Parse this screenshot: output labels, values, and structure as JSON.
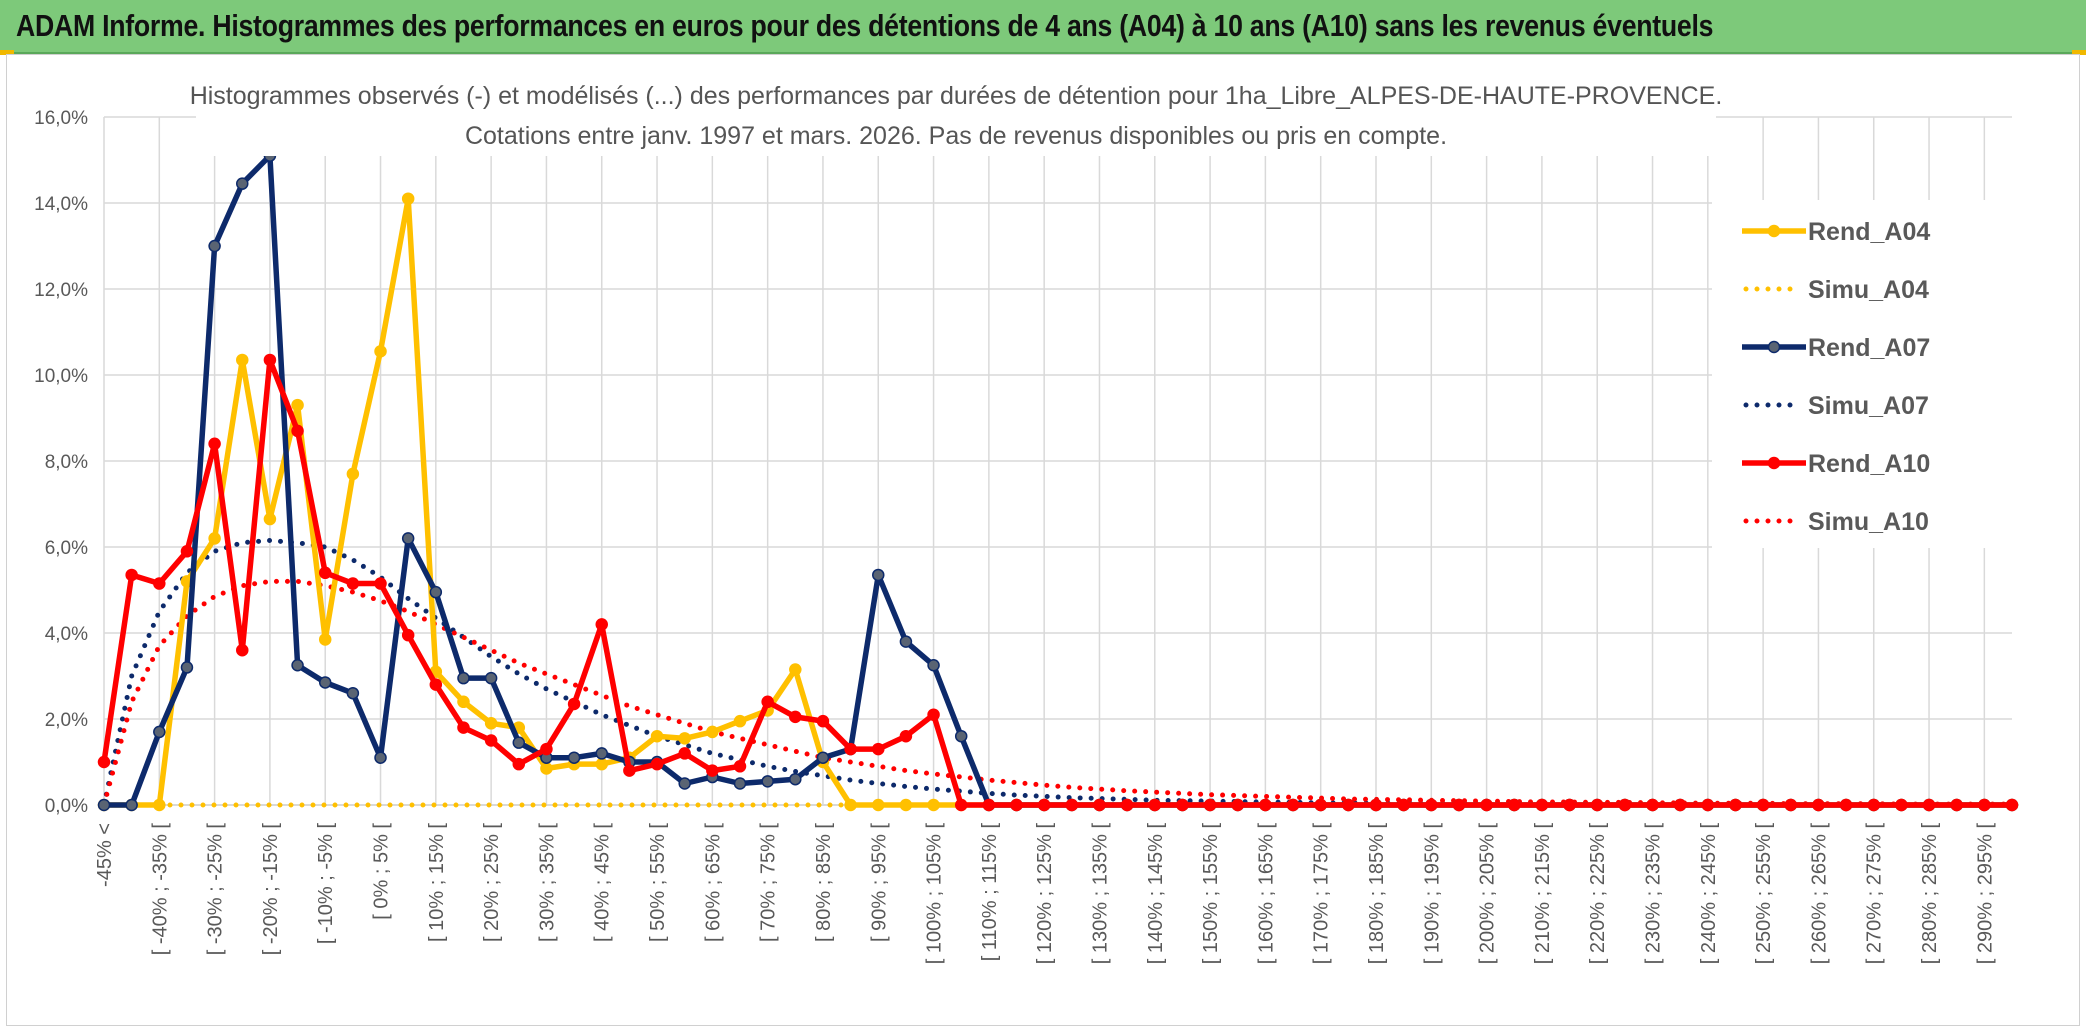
{
  "header": {
    "title": "ADAM Informe. Histogrammes des performances en euros pour des détentions de 4 ans (A04) à 10 ans (A10) sans les revenus éventuels"
  },
  "chart_data": {
    "type": "line",
    "title": "Histogrammes observés (-) et modélisés (...) des performances par durées de détention pour 1ha_Libre_ALPES-DE-HAUTE-PROVENCE.",
    "subtitle": "Cotations entre janv. 1997 et mars. 2026. Pas de revenus disponibles ou pris en compte.",
    "xlabel": "",
    "ylabel": "",
    "ylim": [
      0,
      16
    ],
    "y_ticks": [
      "0,0%",
      "2,0%",
      "4,0%",
      "6,0%",
      "8,0%",
      "10,0%",
      "12,0%",
      "14,0%",
      "16,0%"
    ],
    "grid": true,
    "legend_position": "right",
    "categories": [
      "-45% <",
      "[ -45% ; -40% [",
      "[ -40% ; -35% [",
      "[ -35% ; -30% [",
      "[ -30% ; -25% [",
      "[ -25% ; -20% [",
      "[ -20% ; -15% [",
      "[ -15% ; -10% [",
      "[ -10% ; -5% [",
      "[ -5% ; 0% [",
      "[ 0% ; 5% [",
      "[ 5% ; 10% [",
      "[ 10% ; 15% [",
      "[ 15% ; 20% [",
      "[ 20% ; 25% [",
      "[ 25% ; 30% [",
      "[ 30% ; 35% [",
      "[ 35% ; 40% [",
      "[ 40% ; 45% [",
      "[ 45% ; 50% [",
      "[ 50% ; 55% [",
      "[ 55% ; 60% [",
      "[ 60% ; 65% [",
      "[ 65% ; 70% [",
      "[ 70% ; 75% [",
      "[ 75% ; 80% [",
      "[ 80% ; 85% [",
      "[ 85% ; 90% [",
      "[ 90% ; 95% [",
      "[ 95% ; 100% [",
      "[ 100% ; 105% [",
      "[ 105% ; 110% [",
      "[ 110% ; 115% [",
      "[ 115% ; 120% [",
      "[ 120% ; 125% [",
      "[ 125% ; 130% [",
      "[ 130% ; 135% [",
      "[ 135% ; 140% [",
      "[ 140% ; 145% [",
      "[ 145% ; 150% [",
      "[ 150% ; 155% [",
      "[ 155% ; 160% [",
      "[ 160% ; 165% [",
      "[ 165% ; 170% [",
      "[ 170% ; 175% [",
      "[ 175% ; 180% [",
      "[ 180% ; 185% [",
      "[ 185% ; 190% [",
      "[ 190% ; 195% [",
      "[ 195% ; 200% [",
      "[ 200% ; 205% [",
      "[ 205% ; 210% [",
      "[ 210% ; 215% [",
      "[ 215% ; 220% [",
      "[ 220% ; 225% [",
      "[ 225% ; 230% [",
      "[ 230% ; 235% [",
      "[ 235% ; 240% [",
      "[ 240% ; 245% [",
      "[ 245% ; 250% [",
      "[ 250% ; 255% [",
      "[ 255% ; 260% [",
      "[ 260% ; 265% [",
      "[ 265% ; 270% [",
      "[ 270% ; 275% [",
      "[ 275% ; 280% [",
      "[ 280% ; 285% [",
      "[ 285% ; 290% [",
      "[ 290% ; 295% [",
      "[ 295% ; 300% ["
    ],
    "shown_tick_labels": [
      "-45% <",
      "[ -40% ; -35% [",
      "[ -30% ; -25% [",
      "[ -20% ; -15% [",
      "[ -10% ; -5% [",
      "[ 0% ; 5% [",
      "[ 10% ; 15% [",
      "[ 20% ; 25% [",
      "[ 30% ; 35% [",
      "[ 40% ; 45% [",
      "[ 50% ; 55% [",
      "[ 60% ; 65% [",
      "[ 70% ; 75% [",
      "[ 80% ; 85% [",
      "[ 90% ; 95% [",
      "[ 100% ; 105% [",
      "[ 110% ; 115% [",
      "[ 120% ; 125% [",
      "[ 130% ; 135% [",
      "[ 140% ; 145% [",
      "[ 150% ; 155% [",
      "[ 160% ; 165% [",
      "[ 170% ; 175% [",
      "[ 180% ; 185% [",
      "[ 190% ; 195% [",
      "[ 200% ; 205% [",
      "[ 210% ; 215% [",
      "[ 220% ; 225% [",
      "[ 230% ; 235% [",
      "[ 240% ; 245% [",
      "[ 250% ; 255% [",
      "[ 260% ; 265% [",
      "[ 270% ; 275% [",
      "[ 280% ; 285% [",
      "[ 290% ; 295% ["
    ],
    "series": [
      {
        "name": "Rend_A04",
        "color": "#ffc000",
        "style": "solid",
        "markers": true,
        "values": [
          0,
          0,
          0,
          5.2,
          6.2,
          10.35,
          6.65,
          9.3,
          3.85,
          7.7,
          10.55,
          14.1,
          3.1,
          2.4,
          1.9,
          1.8,
          0.85,
          0.95,
          0.95,
          1.1,
          1.6,
          1.55,
          1.7,
          1.95,
          2.2,
          3.15,
          1.0,
          0,
          0,
          0,
          0,
          0,
          0,
          0,
          0,
          0,
          0,
          0,
          0,
          0,
          0,
          0,
          0,
          0,
          0,
          0,
          0,
          0,
          0,
          0,
          0,
          0,
          0,
          0,
          0,
          0,
          0,
          0,
          0,
          0,
          0,
          0,
          0,
          0,
          0,
          0,
          0,
          0,
          0,
          0
        ]
      },
      {
        "name": "Simu_A04",
        "color": "#ffc000",
        "style": "dotted",
        "markers": false,
        "values": [
          0,
          0,
          0,
          0,
          0,
          0,
          0,
          0,
          0,
          0,
          0,
          0,
          0,
          0,
          0,
          0,
          0,
          0,
          0,
          0,
          0,
          0,
          0,
          0,
          0,
          0,
          0,
          0,
          0,
          0,
          0,
          0,
          0,
          0,
          0,
          0,
          0,
          0,
          0,
          0,
          0,
          0,
          0,
          0,
          0,
          0,
          0,
          0,
          0,
          0,
          0,
          0,
          0,
          0,
          0,
          0,
          0,
          0,
          0,
          0,
          0,
          0,
          0,
          0,
          0,
          0,
          0,
          0,
          0,
          0
        ]
      },
      {
        "name": "Rend_A07",
        "color": "#0d2a6b",
        "style": "solid",
        "markers": true,
        "values": [
          0,
          0,
          1.7,
          3.2,
          13.0,
          14.45,
          15.1,
          3.25,
          2.85,
          2.6,
          1.1,
          6.2,
          4.95,
          2.95,
          2.95,
          1.45,
          1.1,
          1.1,
          1.2,
          1.0,
          1.0,
          0.5,
          0.65,
          0.5,
          0.55,
          0.6,
          1.1,
          1.3,
          5.35,
          3.8,
          3.25,
          1.6,
          0,
          0,
          0,
          0,
          0,
          0,
          0,
          0,
          0,
          0,
          0,
          0,
          0,
          0,
          0,
          0,
          0,
          0,
          0,
          0,
          0,
          0,
          0,
          0,
          0,
          0,
          0,
          0,
          0,
          0,
          0,
          0,
          0,
          0,
          0,
          0,
          0,
          0
        ]
      },
      {
        "name": "Simu_A07",
        "color": "#0d2a6b",
        "style": "dotted",
        "markers": false,
        "values": [
          0,
          3.0,
          4.5,
          5.4,
          5.9,
          6.1,
          6.15,
          6.1,
          6.0,
          5.7,
          5.3,
          4.8,
          4.35,
          3.9,
          3.45,
          3.05,
          2.7,
          2.4,
          2.1,
          1.85,
          1.6,
          1.4,
          1.2,
          1.05,
          0.9,
          0.78,
          0.68,
          0.58,
          0.5,
          0.43,
          0.37,
          0.32,
          0.27,
          0.23,
          0.2,
          0.17,
          0.15,
          0.13,
          0.11,
          0.1,
          0.09,
          0.08,
          0.07,
          0.06,
          0.05,
          0.05,
          0.04,
          0.04,
          0.03,
          0.03,
          0.03,
          0.02,
          0.02,
          0.02,
          0.02,
          0.01,
          0.01,
          0.01,
          0.01,
          0.01,
          0.01,
          0.01,
          0.01,
          0.01,
          0.01,
          0.01,
          0.01,
          0.01,
          0.01,
          0.01
        ]
      },
      {
        "name": "Rend_A10",
        "color": "#ff0000",
        "style": "solid",
        "markers": true,
        "values": [
          1.0,
          5.35,
          5.15,
          5.9,
          8.4,
          3.6,
          10.35,
          8.7,
          5.4,
          5.15,
          5.15,
          3.95,
          2.8,
          1.8,
          1.5,
          0.95,
          1.3,
          2.35,
          4.2,
          0.8,
          0.95,
          1.2,
          0.8,
          0.9,
          2.4,
          2.05,
          1.95,
          1.3,
          1.3,
          1.6,
          2.1,
          0,
          0,
          0,
          0,
          0,
          0,
          0,
          0,
          0,
          0,
          0,
          0,
          0,
          0,
          0,
          0,
          0,
          0,
          0,
          0,
          0,
          0,
          0,
          0,
          0,
          0,
          0,
          0,
          0,
          0,
          0,
          0,
          0,
          0,
          0,
          0,
          0,
          0,
          0
        ]
      },
      {
        "name": "Simu_A10",
        "color": "#ff0000",
        "style": "dotted",
        "markers": false,
        "values": [
          0,
          2.4,
          3.7,
          4.4,
          4.85,
          5.1,
          5.2,
          5.2,
          5.1,
          4.95,
          4.75,
          4.5,
          4.2,
          3.9,
          3.6,
          3.3,
          3.05,
          2.8,
          2.55,
          2.3,
          2.1,
          1.9,
          1.7,
          1.55,
          1.4,
          1.25,
          1.1,
          1.0,
          0.9,
          0.8,
          0.72,
          0.65,
          0.58,
          0.52,
          0.46,
          0.41,
          0.37,
          0.33,
          0.3,
          0.27,
          0.24,
          0.22,
          0.2,
          0.18,
          0.16,
          0.14,
          0.13,
          0.12,
          0.11,
          0.1,
          0.09,
          0.08,
          0.07,
          0.07,
          0.06,
          0.06,
          0.05,
          0.05,
          0.04,
          0.04,
          0.04,
          0.03,
          0.03,
          0.03,
          0.03,
          0.02,
          0.02,
          0.02,
          0.02,
          0.02
        ]
      }
    ]
  }
}
